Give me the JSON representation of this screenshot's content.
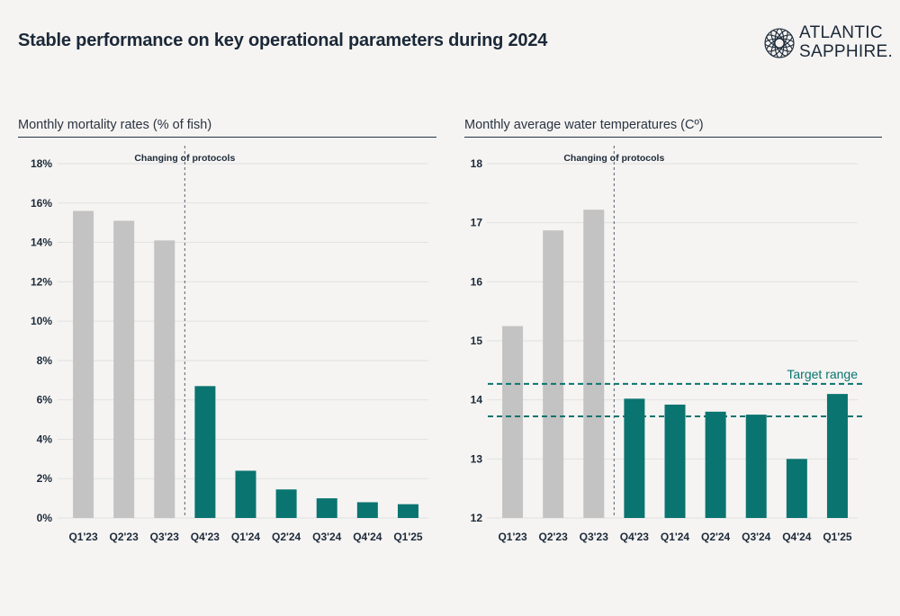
{
  "header": {
    "title": "Stable performance on key operational parameters during 2024",
    "logo_line1": "ATLANTIC",
    "logo_line2": "SAPPHIRE."
  },
  "colors": {
    "before": "#c3c3c3",
    "after": "#0a7470",
    "grid": "#e1e1e1",
    "text": "#1d2a3a",
    "background": "#f5f4f2"
  },
  "chart_data": [
    {
      "type": "bar",
      "title": "Monthly mortality rates (% of fish)",
      "categories": [
        "Q1'23",
        "Q2'23",
        "Q3'23",
        "Q4'23",
        "Q1'24",
        "Q2'24",
        "Q3'24",
        "Q4'24",
        "Q1'25"
      ],
      "values": [
        15.6,
        15.1,
        14.1,
        6.7,
        2.4,
        1.45,
        1.0,
        0.8,
        0.7
      ],
      "unit": "%",
      "ylim": [
        0,
        18
      ],
      "yticks": [
        0,
        2,
        4,
        6,
        8,
        10,
        12,
        14,
        16,
        18
      ],
      "ytick_labels": [
        "0%",
        "2%",
        "4%",
        "6%",
        "8%",
        "10%",
        "12%",
        "14%",
        "16%",
        "18%"
      ],
      "split_after_index": 2,
      "annotation": "Changing of protocols",
      "grid": true
    },
    {
      "type": "bar",
      "title": "Monthly average water temperatures (Cº)",
      "categories": [
        "Q1'23",
        "Q2'23",
        "Q3'23",
        "Q4'23",
        "Q1'24",
        "Q2'24",
        "Q3'24",
        "Q4'24",
        "Q1'25"
      ],
      "values": [
        15.25,
        16.87,
        17.22,
        14.02,
        13.92,
        13.8,
        13.75,
        13.0,
        14.1
      ],
      "ylim": [
        12,
        18
      ],
      "yticks": [
        12,
        13,
        14,
        15,
        16,
        17,
        18
      ],
      "ytick_labels": [
        "12",
        "13",
        "14",
        "15",
        "16",
        "17",
        "18"
      ],
      "split_after_index": 2,
      "annotation": "Changing of protocols",
      "target_range": [
        13.72,
        14.27
      ],
      "target_label": "Target range",
      "grid": true
    }
  ]
}
